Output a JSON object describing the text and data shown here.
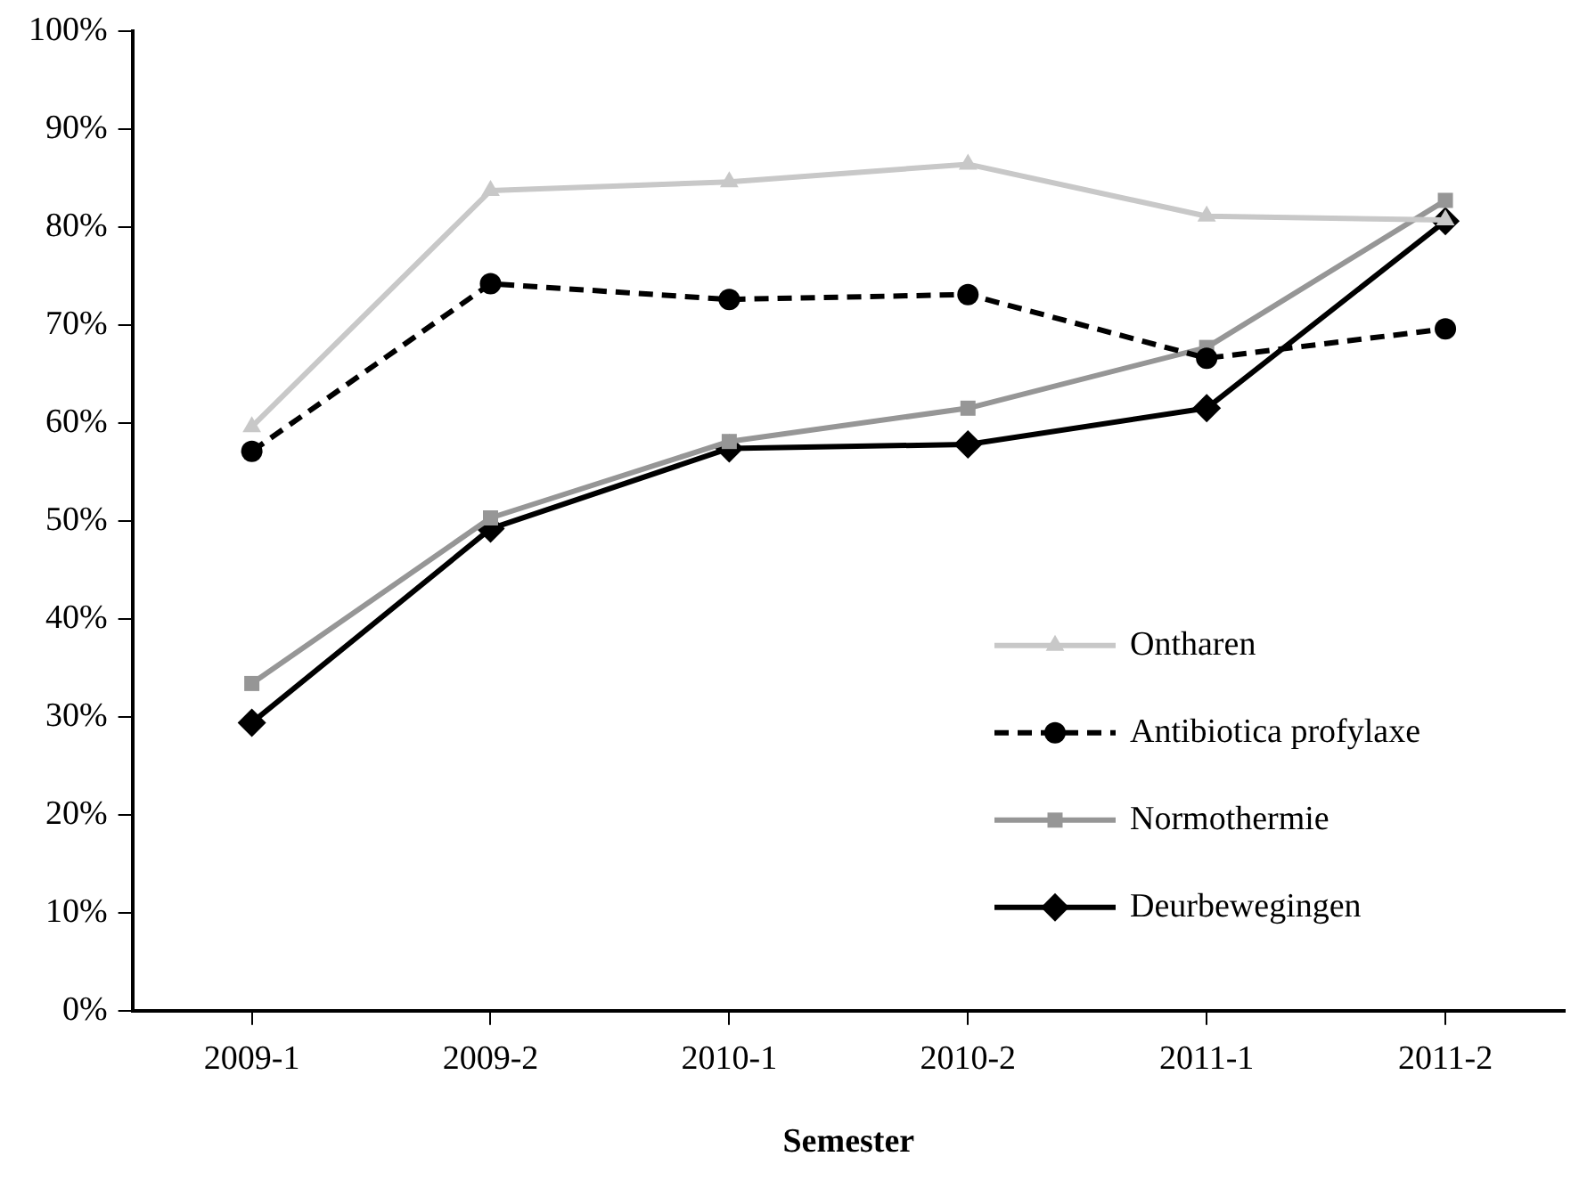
{
  "chart_data": {
    "type": "line",
    "xlabel": "Semester",
    "categories": [
      "2009-1",
      "2009-2",
      "2010-1",
      "2010-2",
      "2011-1",
      "2011-2"
    ],
    "series": [
      {
        "name": "Ontharen",
        "color": "#c8c8c8",
        "marker": "triangle",
        "line_style": "solid",
        "values": [
          0.596,
          0.837,
          0.846,
          0.864,
          0.811,
          0.807
        ]
      },
      {
        "name": "Antibiotica profylaxe",
        "color": "#000000",
        "marker": "circle",
        "line_style": "dashed",
        "values": [
          0.571,
          0.742,
          0.726,
          0.731,
          0.666,
          0.696
        ]
      },
      {
        "name": "Normothermie",
        "color": "#969696",
        "marker": "square",
        "line_style": "solid",
        "values": [
          0.334,
          0.503,
          0.581,
          0.615,
          0.677,
          0.827
        ]
      },
      {
        "name": "Deurbewegingen",
        "color": "#000000",
        "marker": "diamond",
        "line_style": "solid",
        "values": [
          0.294,
          0.492,
          0.574,
          0.578,
          0.615,
          0.806
        ]
      }
    ],
    "ylim": [
      0,
      1
    ],
    "yticks": [
      {
        "value": 0,
        "label": "0%"
      },
      {
        "value": 0.1,
        "label": "10%"
      },
      {
        "value": 0.2,
        "label": "20%"
      },
      {
        "value": 0.3,
        "label": "30%"
      },
      {
        "value": 0.4,
        "label": "40%"
      },
      {
        "value": 0.5,
        "label": "50%"
      },
      {
        "value": 0.6,
        "label": "60%"
      },
      {
        "value": 0.7,
        "label": "70%"
      },
      {
        "value": 0.8,
        "label": "80%"
      },
      {
        "value": 0.9,
        "label": "90%"
      },
      {
        "value": 1,
        "label": "100%"
      }
    ],
    "grid": false,
    "legend": "bottom right"
  }
}
